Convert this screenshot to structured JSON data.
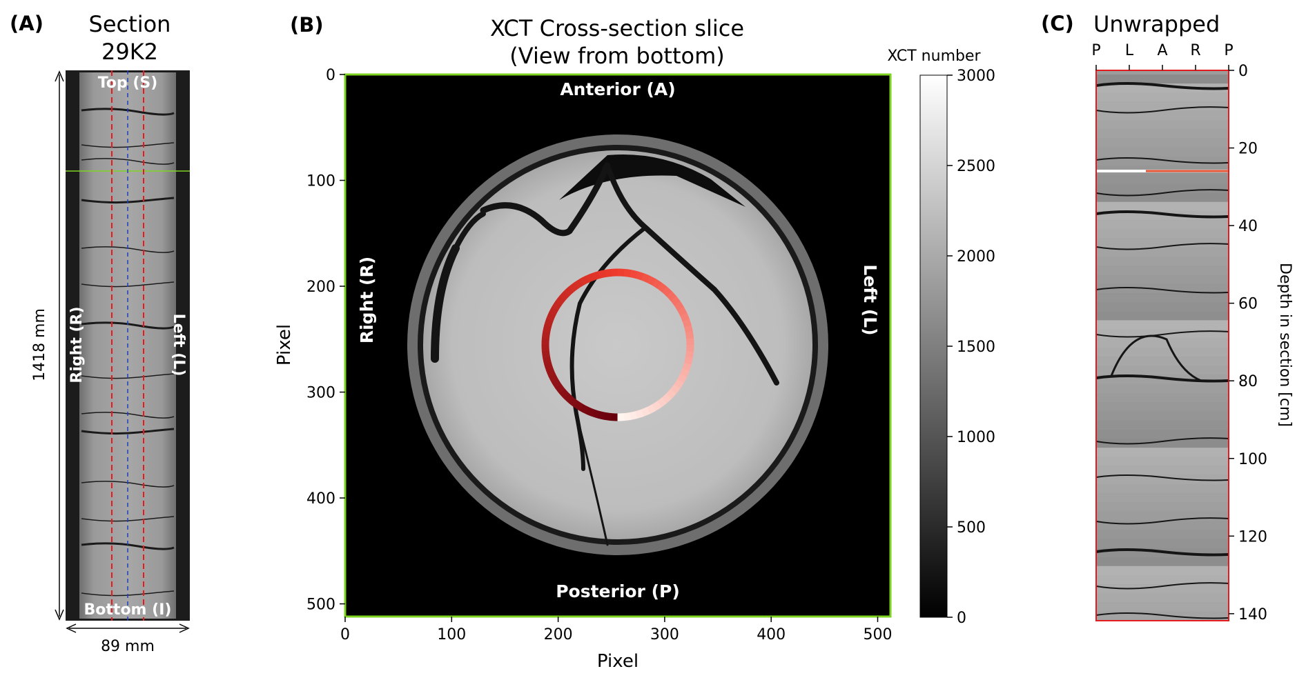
{
  "panels": {
    "a": {
      "label": "(A)",
      "title_line1": "Section",
      "title_line2": "29K2",
      "top_label": "Top (S)",
      "bottom_label": "Bottom (I)",
      "right_label": "Right (R)",
      "left_label": "Left (L)",
      "length_label": "1418 mm",
      "width_label": "89 mm"
    },
    "b": {
      "label": "(B)",
      "title_line1": "XCT Cross-section slice",
      "title_line2": "(View from bottom)",
      "anterior_label": "Anterior (A)",
      "posterior_label": "Posterior (P)",
      "right_label": "Right (R)",
      "left_label": "Left (L)",
      "xlabel": "Pixel",
      "ylabel": "Pixel",
      "xticks": [
        "0",
        "100",
        "200",
        "300",
        "400",
        "500"
      ],
      "yticks": [
        "0",
        "100",
        "200",
        "300",
        "400",
        "500"
      ],
      "colorbar_title": "XCT number",
      "colorbar_ticks": [
        "0",
        "500",
        "1000",
        "1500",
        "2000",
        "2500",
        "3000"
      ]
    },
    "c": {
      "label": "(C)",
      "title": "Unwrapped",
      "top_ticks": [
        "P",
        "L",
        "A",
        "R",
        "P"
      ],
      "ylabel": "Depth in section [cm]",
      "yticks": [
        "0",
        "20",
        "40",
        "60",
        "80",
        "100",
        "120",
        "140"
      ]
    }
  },
  "colors": {
    "frame_green": "#7ed321",
    "sample_line_red": "#e41a1c",
    "center_line_blue": "#1f3fbf",
    "ring_dark": "#67000d",
    "ring_light": "#fff5f0"
  }
}
